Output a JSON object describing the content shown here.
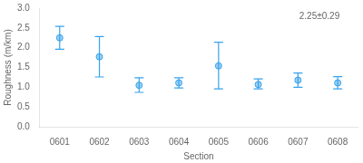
{
  "chart_data": {
    "type": "scatter",
    "categories": [
      "0601",
      "0602",
      "0603",
      "0604",
      "0605",
      "0606",
      "0607",
      "0608"
    ],
    "values": [
      2.25,
      1.77,
      1.05,
      1.11,
      1.54,
      1.07,
      1.18,
      1.11
    ],
    "highs": [
      2.54,
      2.28,
      1.24,
      1.24,
      2.14,
      1.21,
      1.36,
      1.27
    ],
    "lows": [
      1.96,
      1.26,
      0.87,
      0.98,
      0.96,
      0.96,
      1.0,
      0.96
    ],
    "xlabel": "Section",
    "ylabel": "Roughness (m/km)",
    "annotation": "2.25±0.29",
    "ylim": [
      0.0,
      3.0
    ],
    "yticks": [
      {
        "value": 0,
        "label": "0.0"
      },
      0.5,
      {
        "value": 1,
        "label": "1.0"
      },
      1.5,
      {
        "value": 2,
        "label": "2.0"
      },
      2.5,
      {
        "value": 3,
        "label": "3.0"
      }
    ],
    "grid": false
  }
}
